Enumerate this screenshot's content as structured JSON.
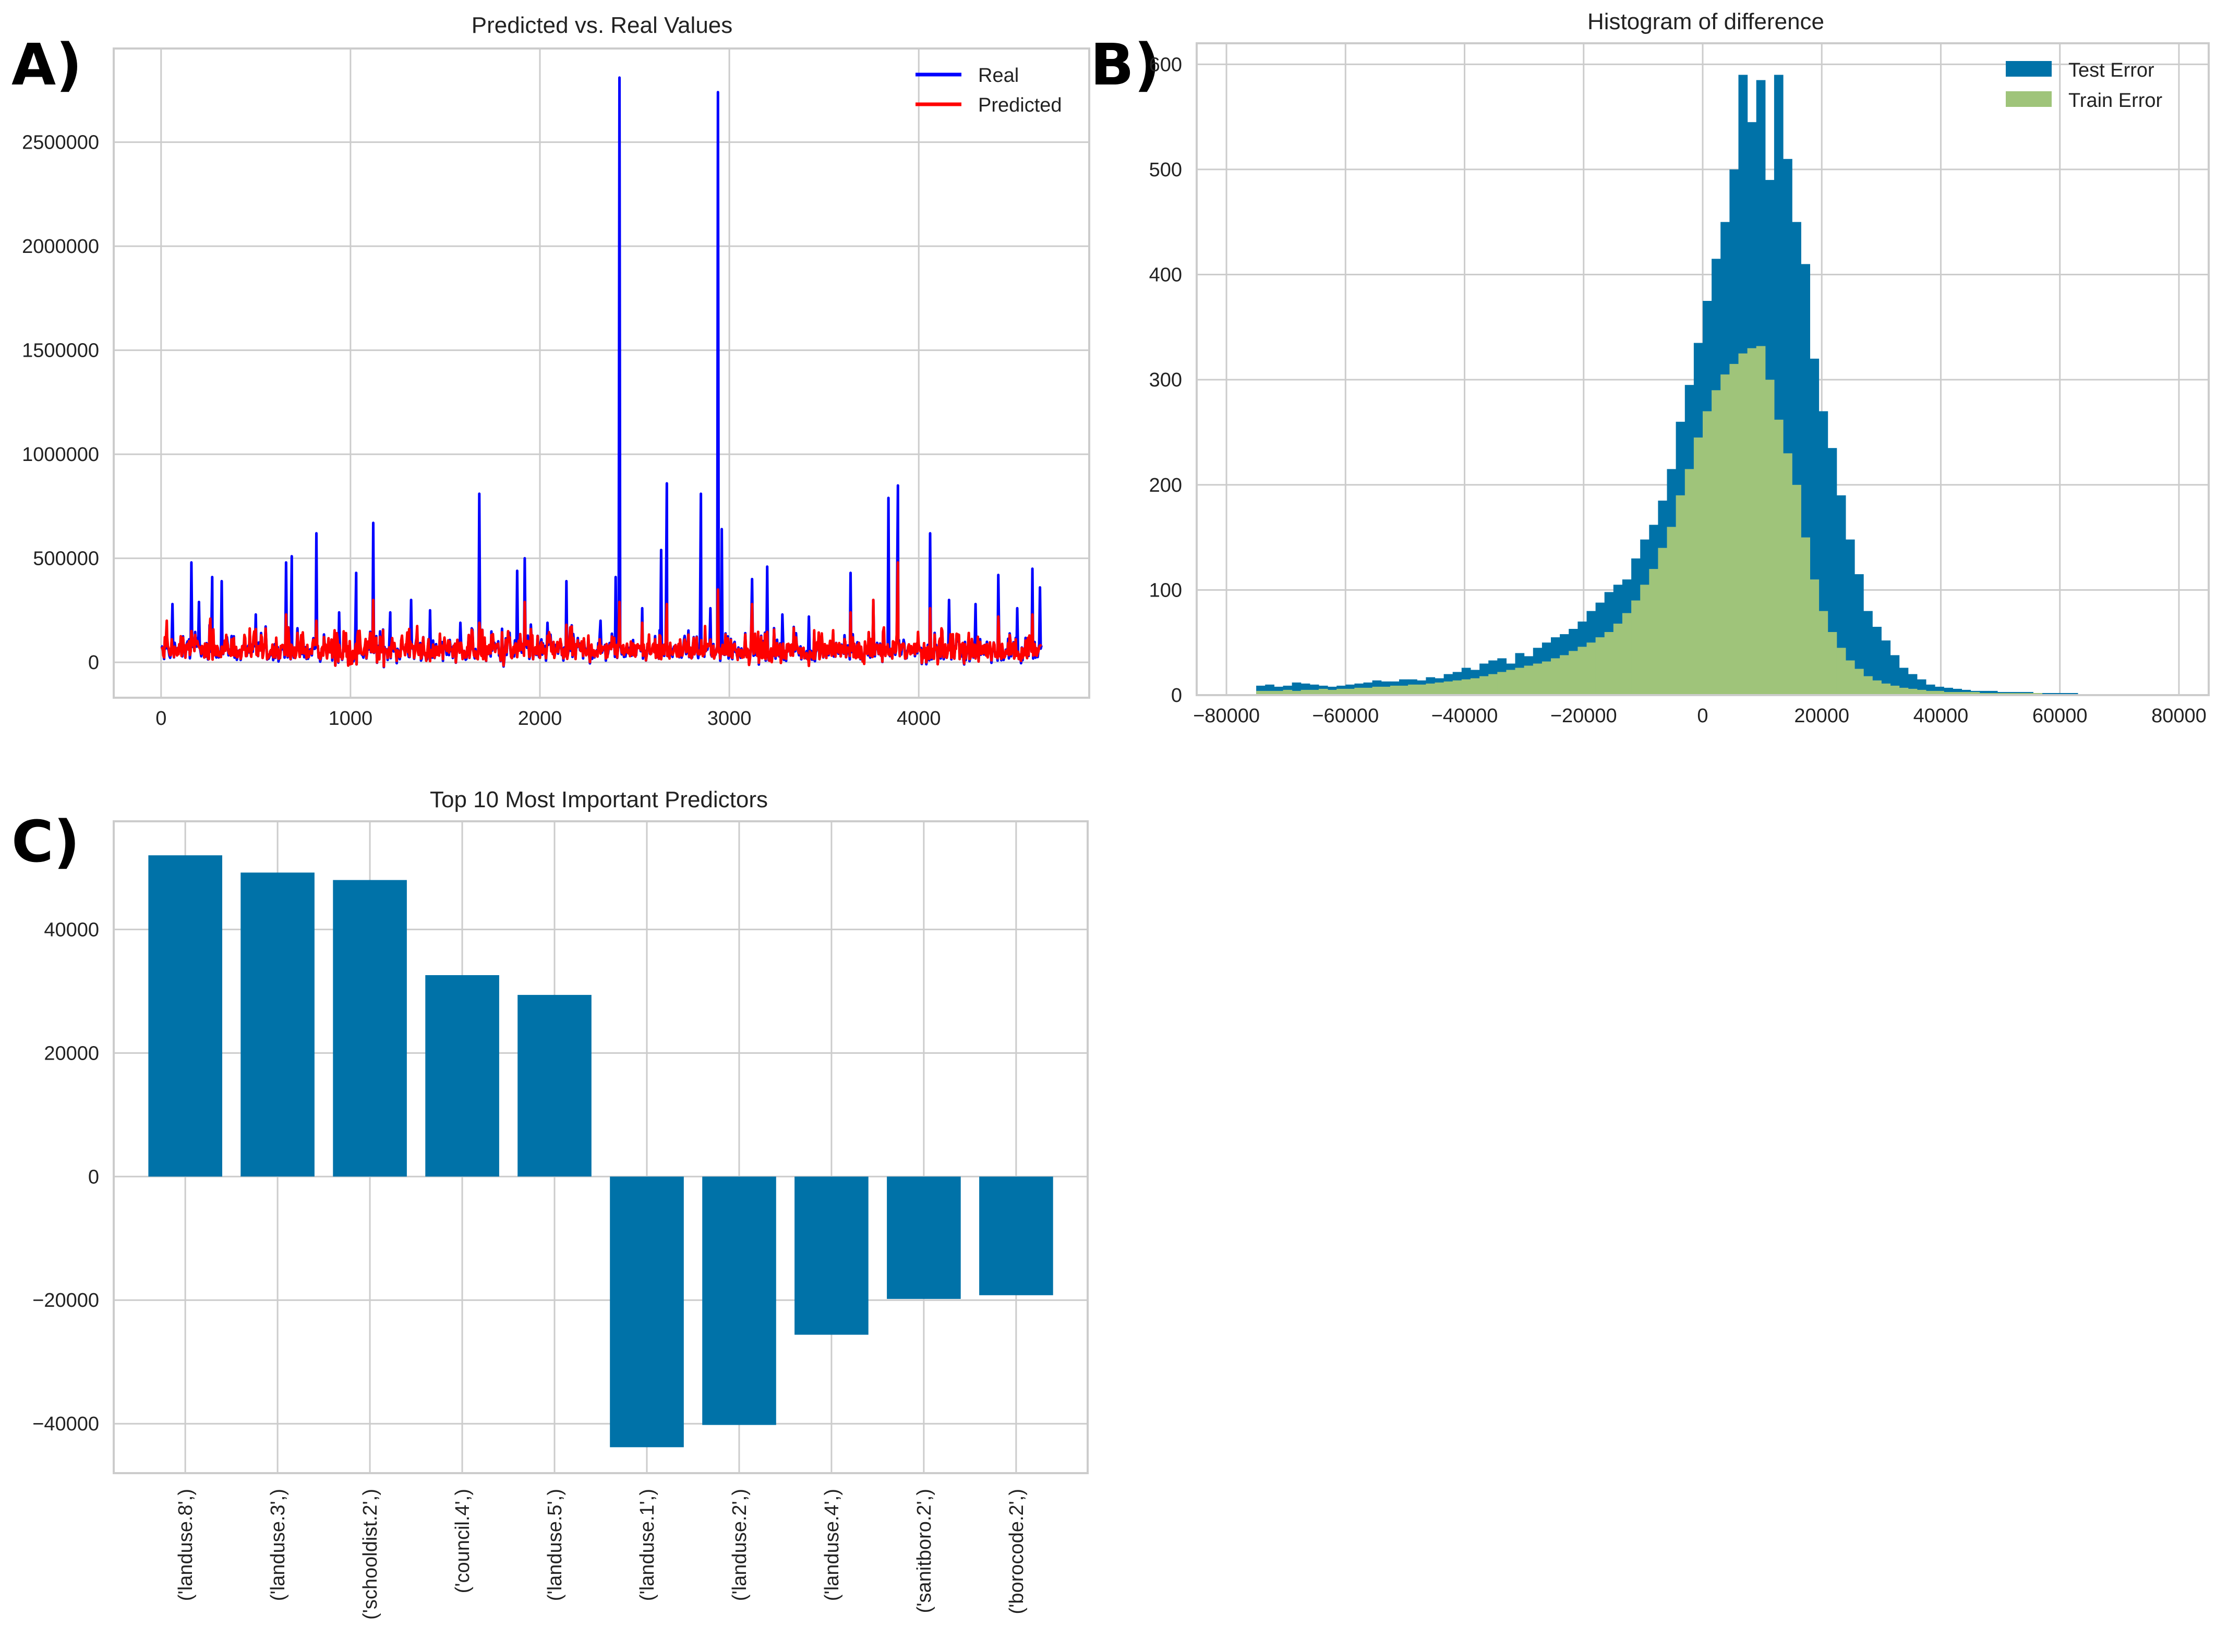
{
  "chart_data": [
    {
      "panel": "A)",
      "type": "line",
      "title": "Predicted vs. Real Values",
      "xlabel": "",
      "ylabel": "",
      "xlim": [
        -250,
        4900
      ],
      "ylim": [
        -170000,
        2950000
      ],
      "xticks": [
        0,
        1000,
        2000,
        3000,
        4000
      ],
      "xtick_labels": [
        "0",
        "1000",
        "2000",
        "3000",
        "4000"
      ],
      "yticks": [
        0,
        500000,
        1000000,
        1500000,
        2000000,
        2500000
      ],
      "ytick_labels": [
        "0",
        "500000",
        "1000000",
        "1500000",
        "2000000",
        "2500000"
      ],
      "grid": true,
      "legend_position": "top-right",
      "n_points": 4650,
      "series": [
        {
          "name": "Real",
          "color": "#0000ff",
          "peaks": [
            [
              20,
              110000
            ],
            [
              60,
              280000
            ],
            [
              160,
              480000
            ],
            [
              200,
              290000
            ],
            [
              270,
              410000
            ],
            [
              320,
              390000
            ],
            [
              500,
              230000
            ],
            [
              660,
              480000
            ],
            [
              690,
              510000
            ],
            [
              820,
              620000
            ],
            [
              940,
              240000
            ],
            [
              1030,
              430000
            ],
            [
              1120,
              670000
            ],
            [
              1210,
              240000
            ],
            [
              1320,
              300000
            ],
            [
              1420,
              250000
            ],
            [
              1580,
              190000
            ],
            [
              1680,
              810000
            ],
            [
              1880,
              440000
            ],
            [
              1920,
              500000
            ],
            [
              2040,
              190000
            ],
            [
              2140,
              390000
            ],
            [
              2320,
              200000
            ],
            [
              2400,
              410000
            ],
            [
              2420,
              2810000
            ],
            [
              2540,
              260000
            ],
            [
              2640,
              540000
            ],
            [
              2670,
              860000
            ],
            [
              2850,
              810000
            ],
            [
              2900,
              260000
            ],
            [
              2940,
              2740000
            ],
            [
              2960,
              640000
            ],
            [
              3120,
              400000
            ],
            [
              3200,
              460000
            ],
            [
              3280,
              230000
            ],
            [
              3420,
              220000
            ],
            [
              3640,
              430000
            ],
            [
              3760,
              300000
            ],
            [
              3840,
              790000
            ],
            [
              3890,
              850000
            ],
            [
              4060,
              620000
            ],
            [
              4160,
              300000
            ],
            [
              4300,
              280000
            ],
            [
              4420,
              420000
            ],
            [
              4520,
              260000
            ],
            [
              4600,
              450000
            ],
            [
              4640,
              360000
            ]
          ]
        },
        {
          "name": "Predicted",
          "color": "#ff0000",
          "peaks": [
            [
              30,
              200000
            ],
            [
              160,
              150000
            ],
            [
              260,
              210000
            ],
            [
              500,
              160000
            ],
            [
              660,
              230000
            ],
            [
              820,
              200000
            ],
            [
              1120,
              300000
            ],
            [
              1310,
              160000
            ],
            [
              1680,
              190000
            ],
            [
              1920,
              290000
            ],
            [
              2140,
              180000
            ],
            [
              2420,
              290000
            ],
            [
              2540,
              190000
            ],
            [
              2670,
              280000
            ],
            [
              2940,
              350000
            ],
            [
              3120,
              280000
            ],
            [
              3640,
              240000
            ],
            [
              3760,
              300000
            ],
            [
              3890,
              480000
            ],
            [
              4060,
              260000
            ],
            [
              4420,
              220000
            ],
            [
              4600,
              230000
            ]
          ]
        }
      ]
    },
    {
      "panel": "B)",
      "type": "bar",
      "subtype": "histogram",
      "title": "Histogram of difference",
      "xlabel": "",
      "ylabel": "",
      "xlim": [
        -85000,
        85000
      ],
      "ylim": [
        0,
        620
      ],
      "xticks": [
        -80000,
        -60000,
        -40000,
        -20000,
        0,
        20000,
        40000,
        60000,
        80000
      ],
      "xtick_labels": [
        "−80000",
        "−60000",
        "−40000",
        "−20000",
        "0",
        "20000",
        "40000",
        "60000",
        "80000"
      ],
      "yticks": [
        0,
        100,
        200,
        300,
        400,
        500,
        600
      ],
      "ytick_labels": [
        "0",
        "100",
        "200",
        "300",
        "400",
        "500",
        "600"
      ],
      "grid": true,
      "legend_position": "top-right",
      "bin_start": -75000,
      "bin_width": 1500,
      "series": [
        {
          "name": "Test Error",
          "color": "#0072a8",
          "values": [
            9,
            10,
            8,
            9,
            12,
            11,
            10,
            9,
            8,
            9,
            10,
            11,
            12,
            14,
            13,
            13,
            15,
            15,
            14,
            17,
            16,
            20,
            22,
            26,
            24,
            30,
            33,
            35,
            30,
            40,
            37,
            45,
            50,
            55,
            58,
            63,
            70,
            80,
            88,
            98,
            105,
            110,
            130,
            148,
            162,
            185,
            215,
            260,
            295,
            335,
            375,
            415,
            450,
            500,
            590,
            545,
            585,
            490,
            590,
            510,
            450,
            410,
            320,
            270,
            235,
            190,
            148,
            115,
            80,
            65,
            52,
            38,
            26,
            20,
            15,
            10,
            8,
            7,
            6,
            5,
            4,
            4,
            4,
            3,
            3,
            3,
            3,
            2,
            2,
            2,
            2,
            2,
            1,
            1,
            1,
            1,
            1,
            1,
            1,
            1
          ]
        },
        {
          "name": "Train Error",
          "color": "#9fc47a",
          "values": [
            4,
            4,
            4,
            5,
            4,
            5,
            5,
            6,
            5,
            6,
            6,
            7,
            7,
            8,
            8,
            9,
            9,
            10,
            10,
            11,
            12,
            13,
            14,
            15,
            16,
            18,
            20,
            22,
            24,
            26,
            28,
            30,
            32,
            35,
            38,
            42,
            46,
            50,
            55,
            60,
            68,
            78,
            90,
            105,
            120,
            140,
            160,
            190,
            215,
            245,
            270,
            290,
            305,
            315,
            325,
            330,
            332,
            300,
            262,
            230,
            200,
            150,
            110,
            80,
            60,
            45,
            33,
            25,
            18,
            14,
            11,
            9,
            7,
            6,
            5,
            4,
            4,
            3,
            3,
            3,
            3,
            2,
            2,
            2,
            2,
            2,
            2,
            2,
            1,
            1,
            1,
            1,
            1,
            1,
            1,
            1,
            1,
            1,
            1,
            1
          ]
        }
      ]
    },
    {
      "panel": "C)",
      "type": "bar",
      "title": "Top 10 Most Important Predictors",
      "xlabel": "",
      "ylabel": "",
      "ylim": [
        -48000,
        57500
      ],
      "yticks": [
        -40000,
        -20000,
        0,
        20000,
        40000
      ],
      "ytick_labels": [
        "−40000",
        "−20000",
        "0",
        "20000",
        "40000"
      ],
      "grid": true,
      "categories": [
        "('landuse.8',)",
        "('landuse.3',)",
        "('schooldist.2',)",
        "('council.4',)",
        "('landuse.5',)",
        "('landuse.1',)",
        "('landuse.2',)",
        "('landuse.4',)",
        "('sanitboro.2',)",
        "('borocode.2',)"
      ],
      "color": "#0072a8",
      "values": [
        52000,
        49200,
        48000,
        32600,
        29400,
        -43800,
        -40200,
        -25600,
        -19800,
        -19200
      ]
    }
  ]
}
